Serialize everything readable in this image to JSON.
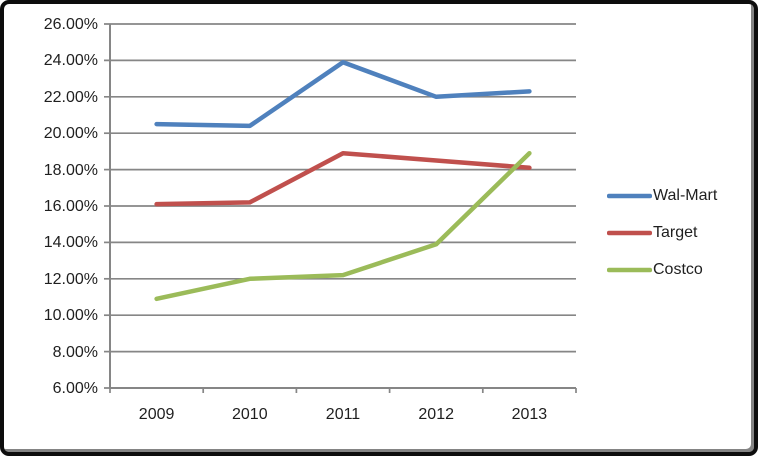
{
  "chart_data": {
    "type": "line",
    "categories": [
      "2009",
      "2010",
      "2011",
      "2012",
      "2013"
    ],
    "series": [
      {
        "name": "Wal-Mart",
        "color": "#4F81BD",
        "values": [
          20.5,
          20.4,
          23.9,
          22.0,
          22.3
        ]
      },
      {
        "name": "Target",
        "color": "#C0504D",
        "values": [
          16.1,
          16.2,
          18.9,
          18.5,
          18.1
        ]
      },
      {
        "name": "Costco",
        "color": "#9BBB59",
        "values": [
          10.9,
          12.0,
          12.2,
          13.9,
          18.9
        ]
      }
    ],
    "y_axis": {
      "min": 6,
      "max": 26,
      "step": 2,
      "tick_labels": [
        "6.00%",
        "8.00%",
        "10.00%",
        "12.00%",
        "14.00%",
        "16.00%",
        "18.00%",
        "20.00%",
        "22.00%",
        "24.00%",
        "26.00%"
      ]
    },
    "title": "",
    "xlabel": "",
    "ylabel": "",
    "ylim": [
      6,
      26
    ],
    "grid": true,
    "legend_position": "right",
    "legend_labels": [
      "Wal-Mart",
      "Target",
      "Costco"
    ],
    "gridline_color": "#868686",
    "axis_color": "#868686",
    "text_color": "#1f1f1f",
    "frame_border_color": "#0d0d0d",
    "frame_shadow_color": "#848484",
    "background_color": "#ffffff"
  }
}
